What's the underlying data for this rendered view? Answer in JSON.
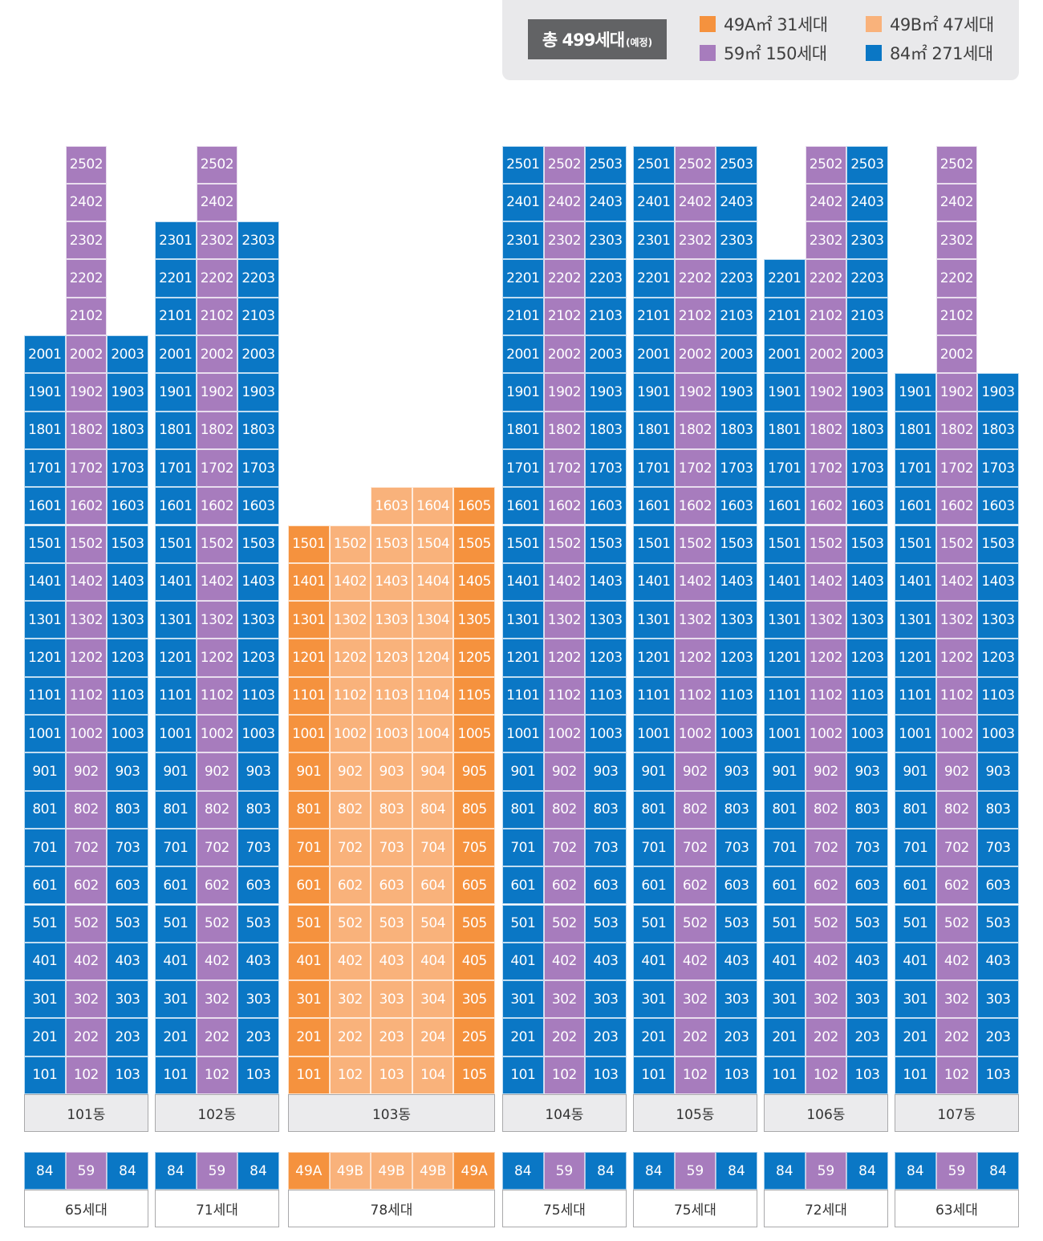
{
  "colors": {
    "49A": "#f5923e",
    "49B": "#f9b27b",
    "59": "#a77cbd",
    "84": "#0a77c5"
  },
  "legend": {
    "total_main": "총 499세대",
    "total_sub": "(예정)",
    "items": [
      {
        "type": "49A",
        "label": "49A㎡ 31세대"
      },
      {
        "type": "49B",
        "label": "49B㎡ 47세대"
      },
      {
        "type": "59",
        "label": "59㎡ 150세대"
      },
      {
        "type": "84",
        "label": "84㎡ 271세대"
      }
    ]
  },
  "buildings": [
    {
      "name": "101동",
      "households": "65세대",
      "line_types": [
        "84",
        "59",
        "84"
      ],
      "line_numbers": [
        "01",
        "02",
        "03"
      ],
      "line_top_floors": [
        20,
        25,
        20
      ]
    },
    {
      "name": "102동",
      "households": "71세대",
      "line_types": [
        "84",
        "59",
        "84"
      ],
      "line_numbers": [
        "01",
        "02",
        "03"
      ],
      "line_top_floors": [
        23,
        25,
        23
      ]
    },
    {
      "name": "103동",
      "households": "78세대",
      "line_types": [
        "49A",
        "49B",
        "49B",
        "49B",
        "49A"
      ],
      "line_numbers": [
        "01",
        "02",
        "03",
        "04",
        "05"
      ],
      "line_top_floors": [
        15,
        15,
        16,
        16,
        16
      ],
      "top_labels": [
        "",
        "",
        "1603",
        "1604",
        "1605"
      ]
    },
    {
      "name": "104동",
      "households": "75세대",
      "line_types": [
        "84",
        "59",
        "84"
      ],
      "line_numbers": [
        "01",
        "02",
        "03"
      ],
      "line_top_floors": [
        25,
        25,
        25
      ]
    },
    {
      "name": "105동",
      "households": "75세대",
      "line_types": [
        "84",
        "59",
        "84"
      ],
      "line_numbers": [
        "01",
        "02",
        "03"
      ],
      "line_top_floors": [
        25,
        25,
        25
      ]
    },
    {
      "name": "106동",
      "households": "72세대",
      "line_types": [
        "84",
        "59",
        "84"
      ],
      "line_numbers": [
        "01",
        "02",
        "03"
      ],
      "line_top_floors": [
        22,
        25,
        25
      ]
    },
    {
      "name": "107동",
      "households": "63세대",
      "line_types": [
        "84",
        "59",
        "84"
      ],
      "line_numbers": [
        "01",
        "02",
        "03"
      ],
      "line_top_floors": [
        19,
        25,
        19
      ]
    }
  ]
}
